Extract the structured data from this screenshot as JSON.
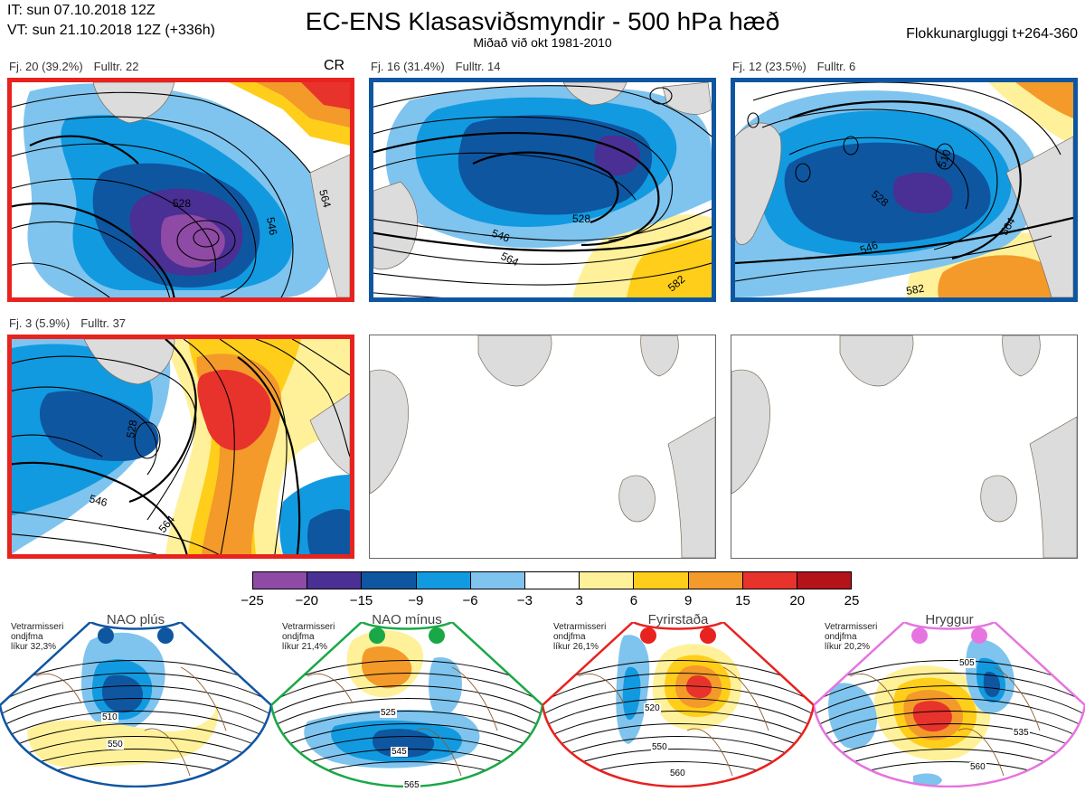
{
  "header": {
    "init_time": "IT: sun 07.10.2018 12Z",
    "valid_time": "VT: sun 21.10.2018 12Z  (+336h)",
    "title": "EC-ENS Klasasviðsmyndir - 500 hPa hæð",
    "subtitle": "Miðað við okt 1981-2010",
    "cluster_window": "Flokkunargluggi t+264-360"
  },
  "clusters": [
    {
      "members": "Fj. 20 (39.2%)",
      "representative": "Fulltr. 22",
      "regime_code": "CR",
      "border_color": "#e8221e",
      "contour_labels": [
        "528",
        "546",
        "564"
      ]
    },
    {
      "members": "Fj. 16 (31.4%)",
      "representative": "Fulltr. 14",
      "border_color": "#0f56a1",
      "contour_labels": [
        "528",
        "546",
        "564",
        "582"
      ]
    },
    {
      "members": "Fj. 12 (23.5%)",
      "representative": "Fulltr. 6",
      "border_color": "#0f56a1",
      "contour_labels": [
        "510",
        "528",
        "546",
        "564",
        "582"
      ]
    },
    {
      "members": "Fj. 3 (5.9%)",
      "representative": "Fulltr. 37",
      "border_color": "#e8221e",
      "contour_labels": [
        "528",
        "546",
        "564"
      ]
    }
  ],
  "colorbar": {
    "ticks": [
      "−25",
      "−20",
      "−15",
      "−9",
      "−6",
      "−3",
      "3",
      "6",
      "9",
      "15",
      "20",
      "25"
    ],
    "colors": [
      "#8e4aa5",
      "#4a2f94",
      "#0f56a1",
      "#129ae0",
      "#7fc4ee",
      "#ffffff",
      "#fff19a",
      "#ffce1a",
      "#f39a2a",
      "#e8322c",
      "#b41319"
    ]
  },
  "regimes": [
    {
      "name": "NAO plús",
      "note_line1": "Vetrarmisseri",
      "note_line2": "ondjfma",
      "note_line3": "líkur 32,3%",
      "color": "#0f56a1",
      "contour_labels": [
        "510",
        "550"
      ]
    },
    {
      "name": "NAO mínus",
      "note_line1": "Vetrarmisseri",
      "note_line2": "ondjfma",
      "note_line3": "líkur 21,4%",
      "color": "#1aa846",
      "contour_labels": [
        "525",
        "545",
        "565"
      ]
    },
    {
      "name": "Fyrirstaða",
      "note_line1": "Vetrarmisseri",
      "note_line2": "ondjfma",
      "note_line3": "líkur 26,1%",
      "color": "#e8221e",
      "contour_labels": [
        "520",
        "550",
        "560"
      ]
    },
    {
      "name": "Hryggur",
      "note_line1": "Vetrarmisseri",
      "note_line2": "ondjfma",
      "note_line3": "líkur 20,2%",
      "color": "#e674e0",
      "contour_labels": [
        "505",
        "535",
        "560"
      ]
    }
  ],
  "chart_data": {
    "type": "heatmap",
    "field": "500 hPa",
    "colorbar_levels": [
      -25,
      -20,
      -15,
      -9,
      -6,
      -3,
      3,
      6,
      9,
      15,
      20,
      25
    ],
    "clusters": [
      {
        "cluster_size": 20,
        "percent": 39.2,
        "representative_member": 22
      },
      {
        "cluster_size": 16,
        "percent": 31.4,
        "representative_member": 14
      },
      {
        "cluster_size": 12,
        "percent": 23.5,
        "representative_member": 6
      },
      {
        "cluster_size": 3,
        "percent": 5.9,
        "representative_member": 37
      }
    ],
    "regime_probabilities_percent": [
      32.3,
      21.4,
      26.1,
      20.2
    ]
  }
}
